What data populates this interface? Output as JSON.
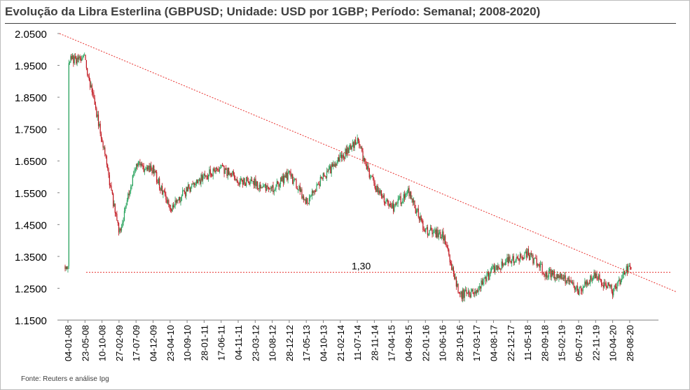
{
  "title": "Evolução da Libra Esterlina (GBPUSD; Unidade: USD por 1GBP; Período: Semanal; 2008-2020)",
  "source": "Fonte: Reuters e análise Ipg",
  "colors": {
    "up": "#24a15a",
    "down": "#c0141c",
    "trendline": "#e8322f",
    "reference": "#e8322f",
    "text": "#404040",
    "axis": "#808080"
  },
  "chart_data": {
    "type": "candlestick",
    "title": "Evolução da Libra Esterlina (GBPUSD; Unidade: USD por 1GBP; Período: Semanal; 2008-2020)",
    "ylim": [
      1.15,
      2.05
    ],
    "yticks": [
      "2.0500",
      "1.9500",
      "1.8500",
      "1.7500",
      "1.6500",
      "1.5500",
      "1.4500",
      "1.3500",
      "1.2500",
      "1.1500"
    ],
    "xticks": [
      "04-01-08",
      "23-05-08",
      "10-10-08",
      "27-02-09",
      "17-07-09",
      "04-12-09",
      "23-04-10",
      "10-09-10",
      "28-01-11",
      "17-06-11",
      "04-11-11",
      "23-03-12",
      "10-08-12",
      "28-12-12",
      "17-05-13",
      "04-10-13",
      "21-02-14",
      "11-07-14",
      "28-11-14",
      "17-04-15",
      "04-09-15",
      "22-01-16",
      "10-06-16",
      "28-10-16",
      "17-03-17",
      "04-08-17",
      "22-12-17",
      "11-05-18",
      "28-09-18",
      "15-02-19",
      "05-07-19",
      "22-11-19",
      "10-04-20",
      "28-08-20"
    ],
    "series_path": [
      {
        "x": "04-01-08",
        "y": 1.97
      },
      {
        "x": "23-05-08",
        "y": 1.97
      },
      {
        "x": "10-10-08",
        "y": 1.72
      },
      {
        "x": "27-02-09",
        "y": 1.42
      },
      {
        "x": "17-07-09",
        "y": 1.64
      },
      {
        "x": "04-12-09",
        "y": 1.62
      },
      {
        "x": "23-04-10",
        "y": 1.5
      },
      {
        "x": "10-09-10",
        "y": 1.56
      },
      {
        "x": "28-01-11",
        "y": 1.6
      },
      {
        "x": "17-06-11",
        "y": 1.63
      },
      {
        "x": "04-11-11",
        "y": 1.59
      },
      {
        "x": "23-03-12",
        "y": 1.58
      },
      {
        "x": "10-08-12",
        "y": 1.56
      },
      {
        "x": "28-12-12",
        "y": 1.61
      },
      {
        "x": "17-05-13",
        "y": 1.52
      },
      {
        "x": "04-10-13",
        "y": 1.6
      },
      {
        "x": "21-02-14",
        "y": 1.66
      },
      {
        "x": "11-07-14",
        "y": 1.71
      },
      {
        "x": "28-11-14",
        "y": 1.57
      },
      {
        "x": "17-04-15",
        "y": 1.5
      },
      {
        "x": "04-09-15",
        "y": 1.55
      },
      {
        "x": "22-01-16",
        "y": 1.43
      },
      {
        "x": "10-06-16",
        "y": 1.42
      },
      {
        "x": "28-10-16",
        "y": 1.23
      },
      {
        "x": "17-03-17",
        "y": 1.24
      },
      {
        "x": "04-08-17",
        "y": 1.31
      },
      {
        "x": "22-12-17",
        "y": 1.34
      },
      {
        "x": "11-05-18",
        "y": 1.36
      },
      {
        "x": "28-09-18",
        "y": 1.3
      },
      {
        "x": "15-02-19",
        "y": 1.29
      },
      {
        "x": "05-07-19",
        "y": 1.24
      },
      {
        "x": "22-11-19",
        "y": 1.29
      },
      {
        "x": "10-04-20",
        "y": 1.24
      },
      {
        "x": "28-08-20",
        "y": 1.32
      }
    ],
    "trendline": {
      "from": {
        "x": "04-01-08",
        "y": 2.05
      },
      "to": {
        "x": "28-08-20",
        "y": 1.3
      }
    },
    "reference_line": {
      "y": 1.3,
      "label": "1,30"
    },
    "grid": false,
    "legend": "none"
  }
}
